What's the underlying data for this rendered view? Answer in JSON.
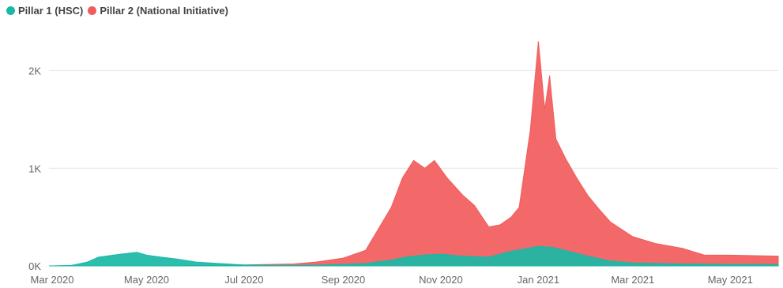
{
  "chart_data": {
    "type": "area",
    "title": "",
    "xlabel": "",
    "ylabel": "",
    "legend_position": "top-left",
    "grid": true,
    "x_start": "2020-03-01",
    "x_end": "2021-05-31",
    "ylim": [
      0,
      2400
    ],
    "y_ticks": [
      {
        "value": 0,
        "label": "0K"
      },
      {
        "value": 1000,
        "label": "1K"
      },
      {
        "value": 2000,
        "label": "2K"
      }
    ],
    "x_ticks": [
      {
        "date": "2020-03-01",
        "label": "Mar 2020"
      },
      {
        "date": "2020-05-01",
        "label": "May 2020"
      },
      {
        "date": "2020-07-01",
        "label": "Jul 2020"
      },
      {
        "date": "2020-09-01",
        "label": "Sep 2020"
      },
      {
        "date": "2020-11-01",
        "label": "Nov 2020"
      },
      {
        "date": "2021-01-01",
        "label": "Jan 2021"
      },
      {
        "date": "2021-03-01",
        "label": "Mar 2021"
      },
      {
        "date": "2021-05-01",
        "label": "May 2021"
      }
    ],
    "series": [
      {
        "name": "Pillar 1 (HSC)",
        "color": "#1ab8a6",
        "points": [
          [
            "2020-03-01",
            0
          ],
          [
            "2020-03-15",
            5
          ],
          [
            "2020-03-25",
            40
          ],
          [
            "2020-04-01",
            90
          ],
          [
            "2020-04-10",
            110
          ],
          [
            "2020-04-20",
            130
          ],
          [
            "2020-04-25",
            140
          ],
          [
            "2020-05-01",
            110
          ],
          [
            "2020-05-10",
            90
          ],
          [
            "2020-05-20",
            70
          ],
          [
            "2020-06-01",
            40
          ],
          [
            "2020-06-15",
            25
          ],
          [
            "2020-07-01",
            10
          ],
          [
            "2020-07-15",
            6
          ],
          [
            "2020-08-01",
            5
          ],
          [
            "2020-08-15",
            7
          ],
          [
            "2020-09-01",
            15
          ],
          [
            "2020-09-15",
            25
          ],
          [
            "2020-10-01",
            60
          ],
          [
            "2020-10-10",
            90
          ],
          [
            "2020-10-20",
            110
          ],
          [
            "2020-11-01",
            120
          ],
          [
            "2020-11-15",
            100
          ],
          [
            "2020-12-01",
            90
          ],
          [
            "2020-12-15",
            150
          ],
          [
            "2021-01-01",
            200
          ],
          [
            "2021-01-10",
            190
          ],
          [
            "2021-01-20",
            150
          ],
          [
            "2021-02-01",
            100
          ],
          [
            "2021-02-15",
            50
          ],
          [
            "2021-03-01",
            30
          ],
          [
            "2021-04-01",
            20
          ],
          [
            "2021-05-01",
            15
          ],
          [
            "2021-05-31",
            15
          ]
        ]
      },
      {
        "name": "Pillar 2 (National Initiative)",
        "color": "#f25c5c",
        "points": [
          [
            "2020-03-01",
            0
          ],
          [
            "2020-04-01",
            0
          ],
          [
            "2020-05-01",
            0
          ],
          [
            "2020-06-01",
            5
          ],
          [
            "2020-07-01",
            10
          ],
          [
            "2020-08-01",
            20
          ],
          [
            "2020-08-15",
            40
          ],
          [
            "2020-09-01",
            80
          ],
          [
            "2020-09-15",
            160
          ],
          [
            "2020-10-01",
            600
          ],
          [
            "2020-10-08",
            900
          ],
          [
            "2020-10-15",
            1080
          ],
          [
            "2020-10-22",
            1000
          ],
          [
            "2020-10-28",
            1080
          ],
          [
            "2020-11-05",
            900
          ],
          [
            "2020-11-15",
            720
          ],
          [
            "2020-11-22",
            620
          ],
          [
            "2020-12-01",
            400
          ],
          [
            "2020-12-08",
            420
          ],
          [
            "2020-12-15",
            500
          ],
          [
            "2020-12-20",
            600
          ],
          [
            "2020-12-27",
            1400
          ],
          [
            "2021-01-01",
            2300
          ],
          [
            "2021-01-05",
            1600
          ],
          [
            "2021-01-08",
            1950
          ],
          [
            "2021-01-12",
            1300
          ],
          [
            "2021-01-18",
            1100
          ],
          [
            "2021-01-25",
            900
          ],
          [
            "2021-02-01",
            720
          ],
          [
            "2021-02-08",
            580
          ],
          [
            "2021-02-15",
            450
          ],
          [
            "2021-03-01",
            300
          ],
          [
            "2021-03-15",
            230
          ],
          [
            "2021-04-01",
            180
          ],
          [
            "2021-04-15",
            110
          ],
          [
            "2021-05-01",
            110
          ],
          [
            "2021-05-31",
            100
          ]
        ]
      }
    ]
  }
}
